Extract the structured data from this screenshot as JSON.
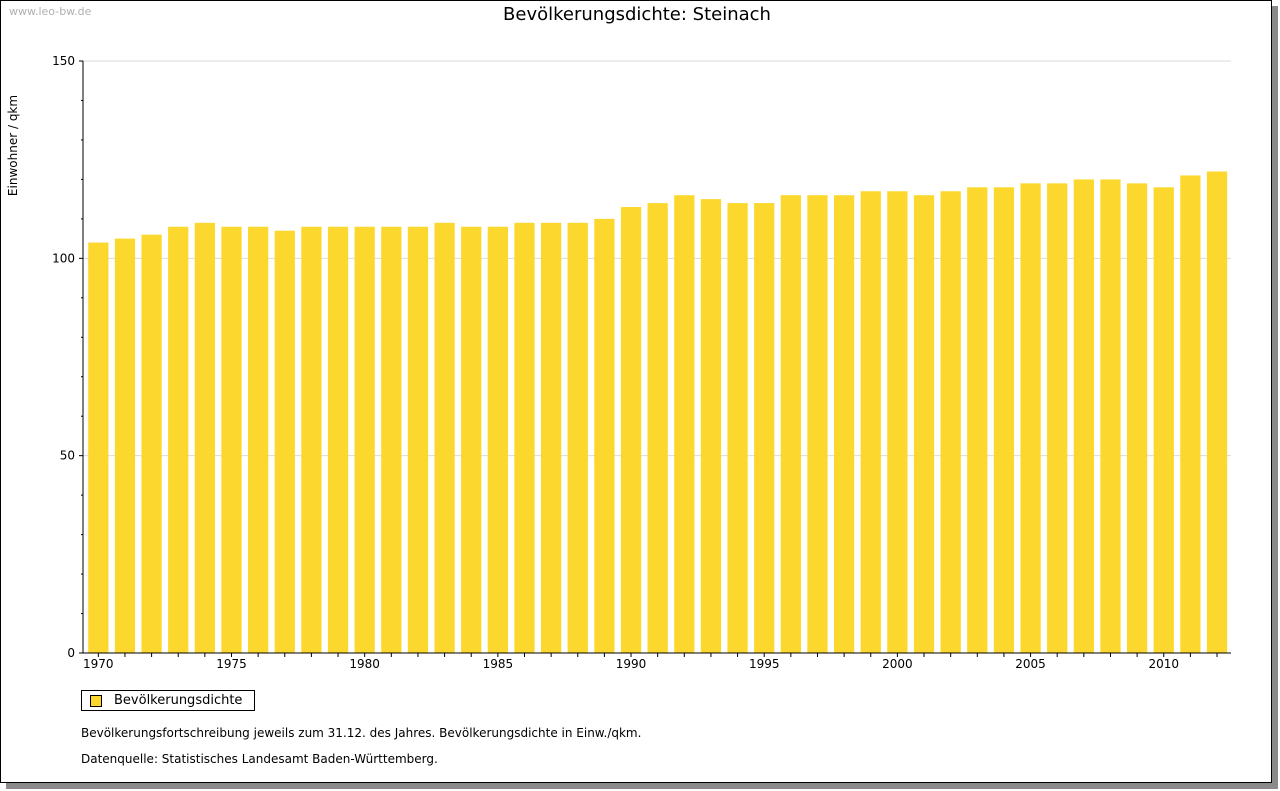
{
  "watermark": "www.leo-bw.de",
  "chart_data": {
    "type": "bar",
    "title": "Bevölkerungsdichte: Steinach",
    "xlabel": "",
    "ylabel": "Einwohner / qkm",
    "ylim": [
      0,
      150
    ],
    "yticks": [
      0,
      50,
      100,
      150
    ],
    "xtick_labels": [
      "1970",
      "1975",
      "1980",
      "1985",
      "1990",
      "1995",
      "2000",
      "2005",
      "2010"
    ],
    "grid": true,
    "legend_position": "bottom-left",
    "categories": [
      "1970",
      "1971",
      "1972",
      "1973",
      "1974",
      "1975",
      "1976",
      "1977",
      "1978",
      "1979",
      "1980",
      "1981",
      "1982",
      "1983",
      "1984",
      "1985",
      "1986",
      "1987",
      "1988",
      "1989",
      "1990",
      "1991",
      "1992",
      "1993",
      "1994",
      "1995",
      "1996",
      "1997",
      "1998",
      "1999",
      "2000",
      "2001",
      "2002",
      "2003",
      "2004",
      "2005",
      "2006",
      "2007",
      "2008",
      "2009",
      "2010",
      "2011",
      "2012"
    ],
    "series": [
      {
        "name": "Bevölkerungsdichte",
        "color": "#fcd82e",
        "values": [
          104,
          105,
          106,
          108,
          109,
          108,
          108,
          107,
          108,
          108,
          108,
          108,
          108,
          109,
          108,
          108,
          109,
          109,
          109,
          110,
          113,
          114,
          116,
          115,
          114,
          114,
          116,
          116,
          116,
          117,
          117,
          116,
          117,
          118,
          118,
          119,
          119,
          120,
          120,
          119,
          118,
          121,
          122
        ]
      }
    ]
  },
  "notes": {
    "line1": "Bevölkerungsfortschreibung jeweils zum 31.12. des Jahres. Bevölkerungsdichte in Einw./qkm.",
    "line2": "Datenquelle: Statistisches Landesamt Baden-Württemberg."
  }
}
